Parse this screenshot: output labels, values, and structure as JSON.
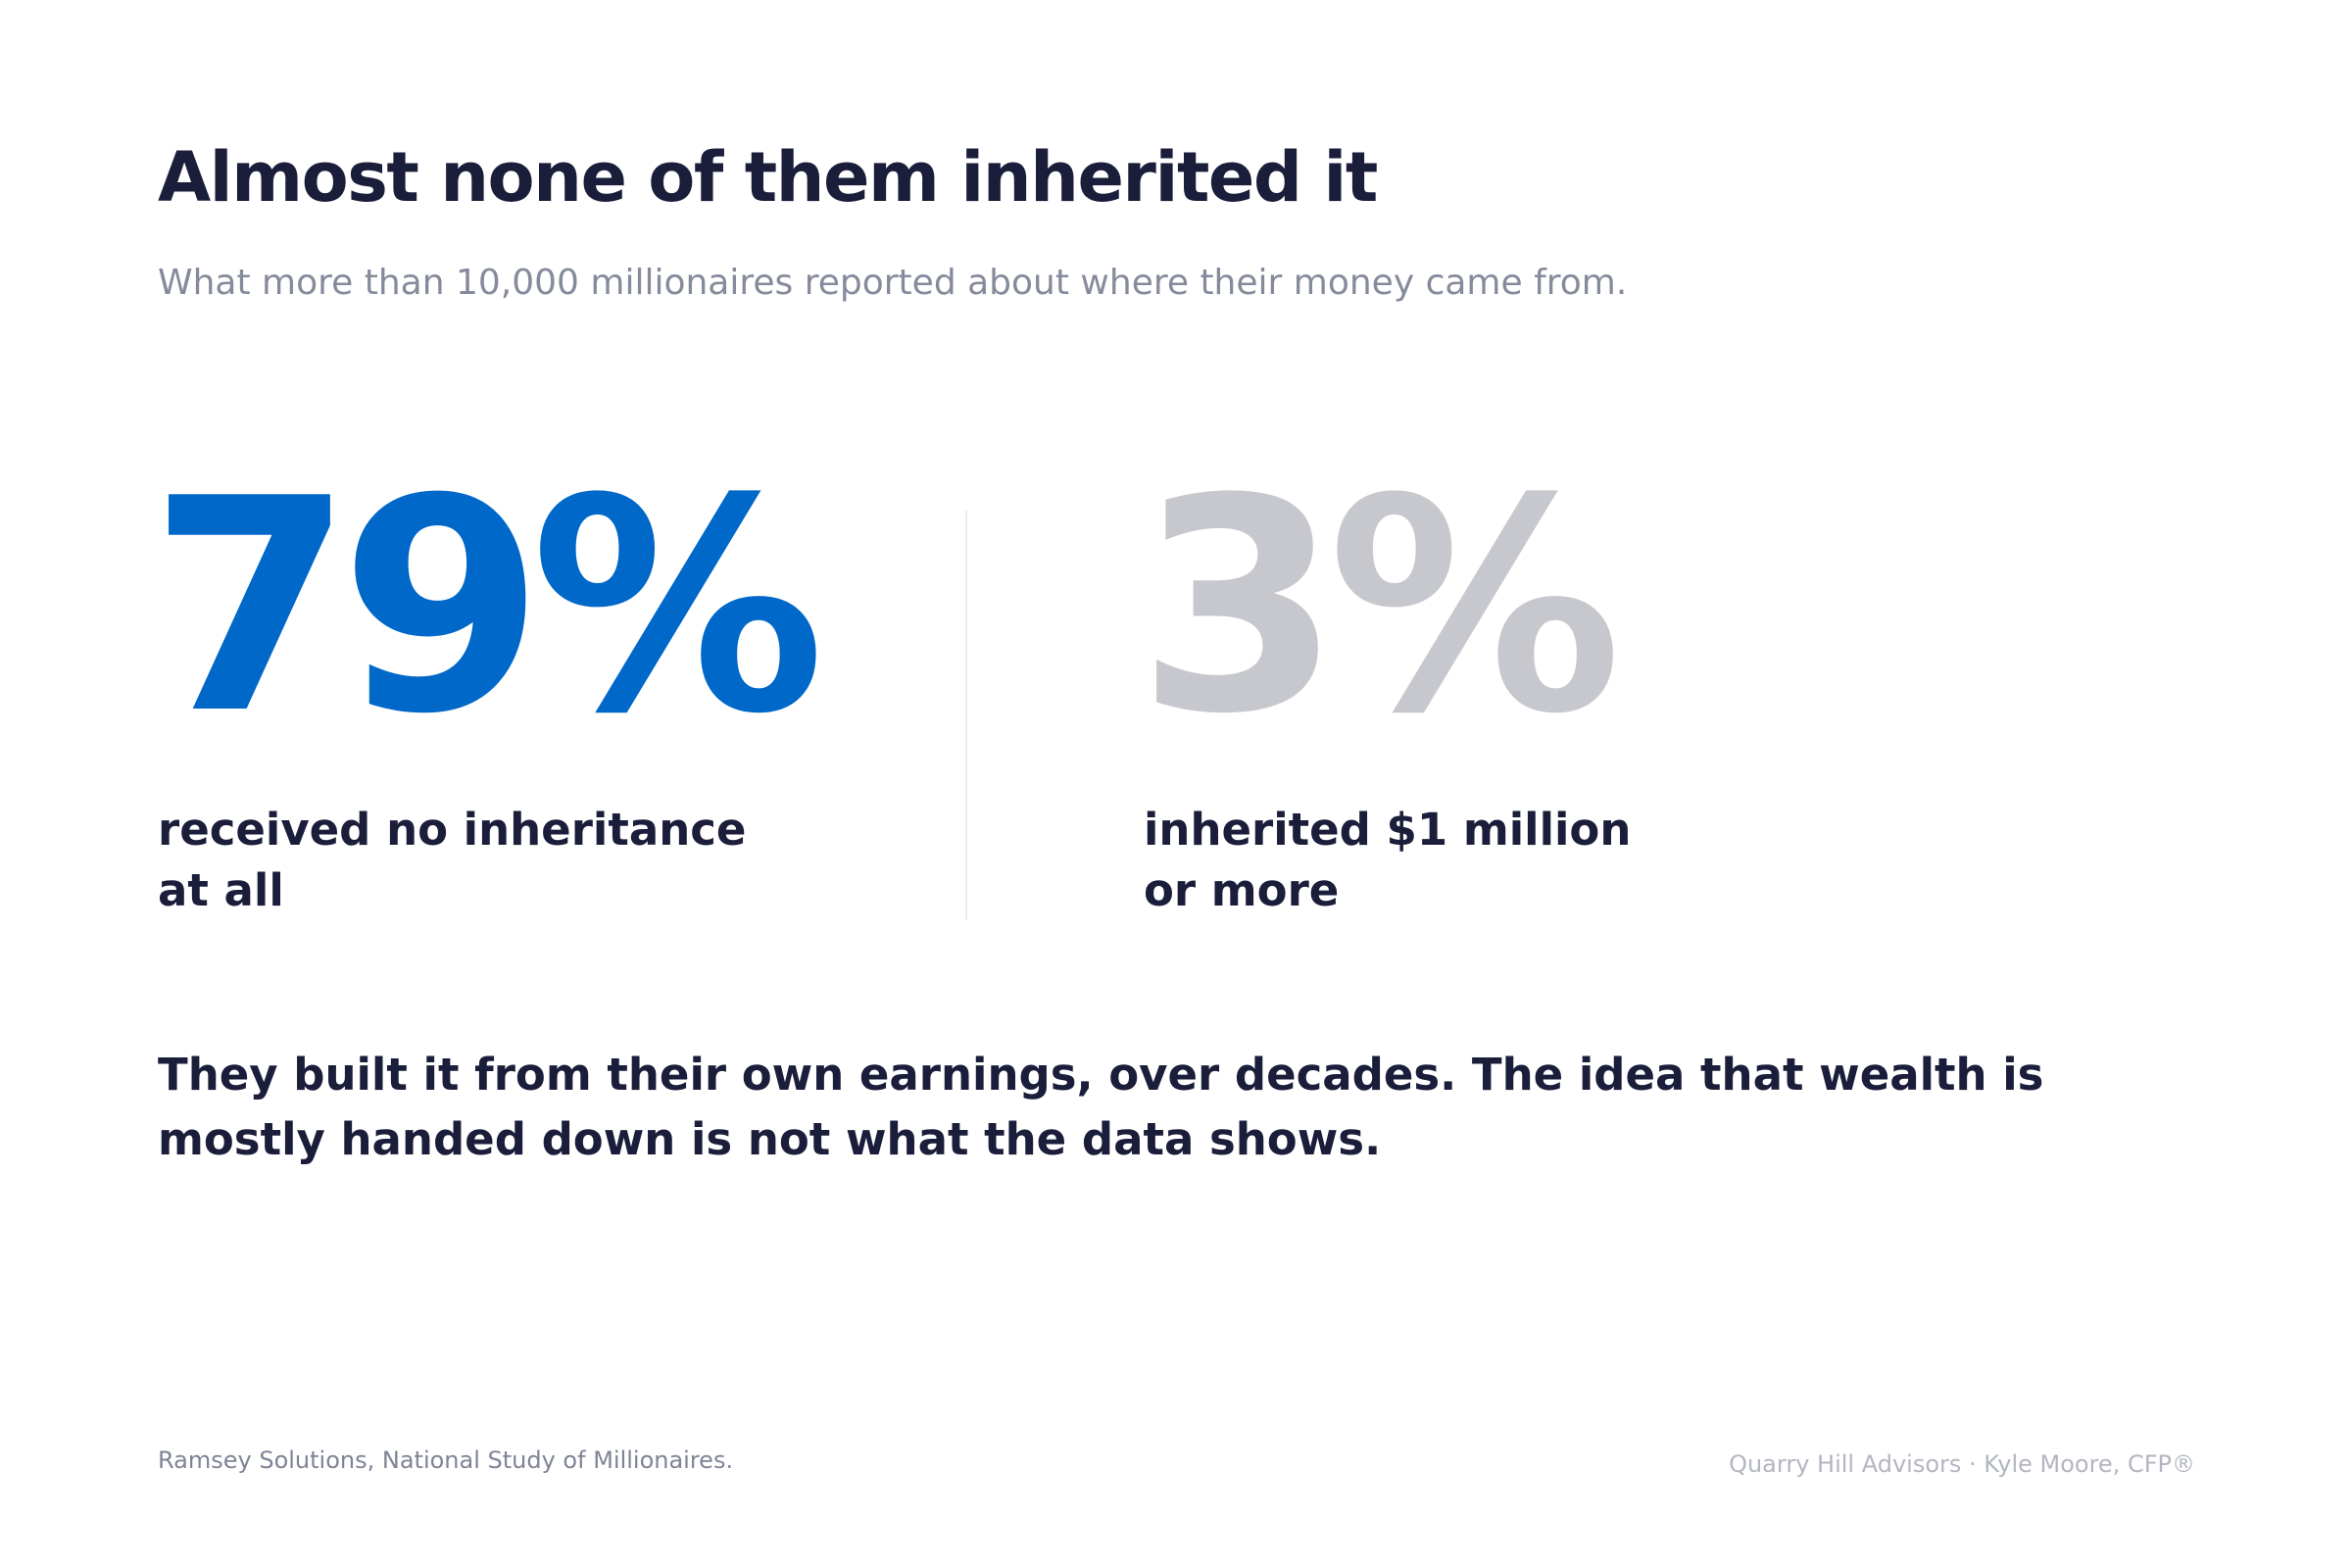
{
  "header": {
    "title": "Almost none of them inherited it",
    "subtitle": "What more than 10,000 millionaires reported about where their money came from."
  },
  "stats": [
    {
      "value": "79%",
      "label_lines": [
        "received no inheritance",
        "at all"
      ]
    },
    {
      "value": "3%",
      "label_lines": [
        "inherited $1 million",
        "or more"
      ]
    }
  ],
  "body": {
    "lines": [
      "They built it from their own earnings, over decades. The idea that wealth is",
      "mostly handed down is not what the data shows."
    ]
  },
  "footer": {
    "source": "Ramsey Solutions, National Study of Millionaires.",
    "credit": "Quarry Hill Advisors · Kyle Moore, CFP®"
  }
}
